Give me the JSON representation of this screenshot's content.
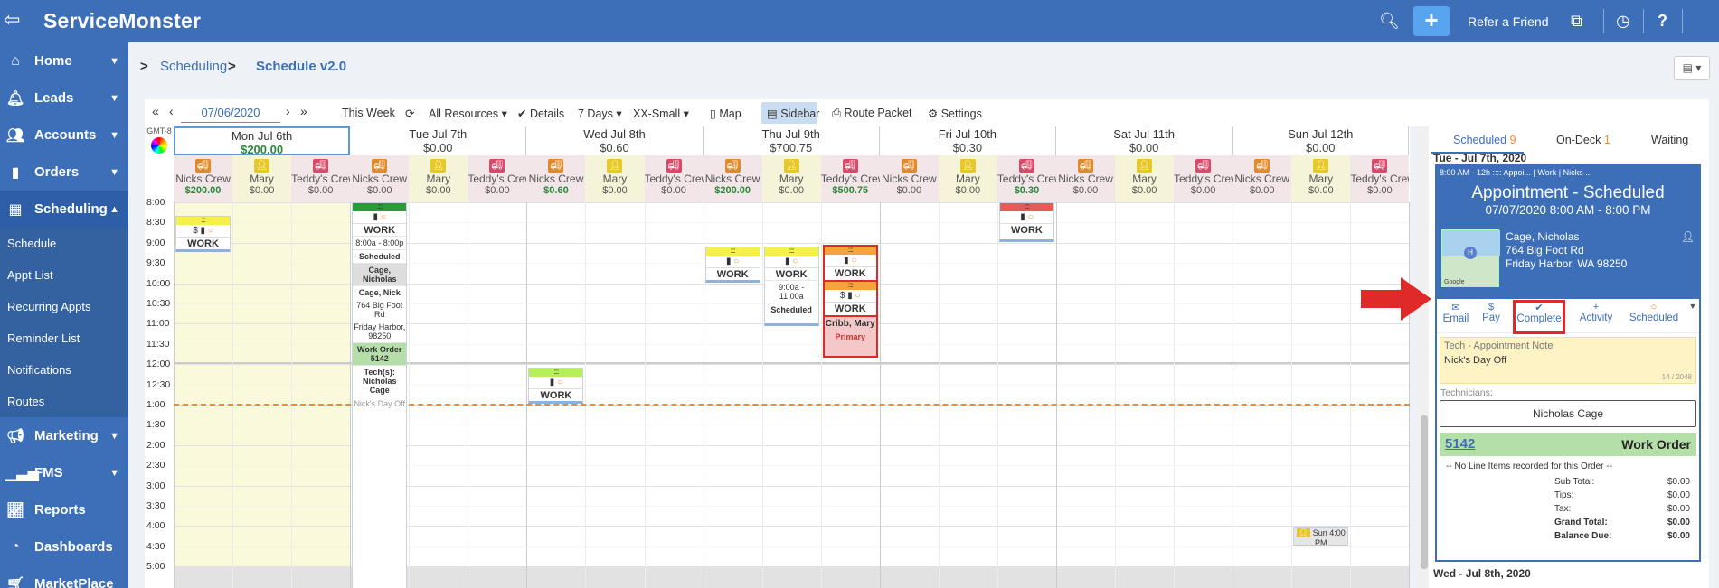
{
  "app": {
    "name": "ServiceMonster",
    "refer_label": "Refer a Friend"
  },
  "sidebar": {
    "items": [
      {
        "label": "Home",
        "icon": "home-icon"
      },
      {
        "label": "Leads",
        "icon": "bell-icon"
      },
      {
        "label": "Accounts",
        "icon": "users-icon"
      },
      {
        "label": "Orders",
        "icon": "file-icon"
      },
      {
        "label": "Scheduling",
        "icon": "calendar-icon"
      },
      {
        "label": "Marketing",
        "icon": "megaphone-icon"
      },
      {
        "label": "FMS",
        "icon": "signal-icon"
      },
      {
        "label": "Reports",
        "icon": "chart-icon"
      },
      {
        "label": "Dashboards",
        "icon": "pie-icon"
      },
      {
        "label": "MarketPlace",
        "icon": "cart-icon"
      }
    ],
    "sub_items": [
      "Schedule",
      "Appt List",
      "Recurring Appts",
      "Reminder List",
      "Notifications",
      "Routes"
    ]
  },
  "breadcrumb": {
    "parent": "Scheduling",
    "current": "Schedule v2.0"
  },
  "toolbar": {
    "date": "07/06/2020",
    "this_week": "This Week",
    "resources": "All Resources",
    "details": "Details",
    "days": "7 Days",
    "size": "XX-Small",
    "map": "Map",
    "sidebar": "Sidebar",
    "route_packet": "Route Packet",
    "settings": "Settings"
  },
  "calendar": {
    "gmt": "GMT-8",
    "days": [
      {
        "name": "Mon Jul 6th",
        "total": "$200.00",
        "resources": [
          "$200.00",
          "$0.00",
          "$0.00"
        ]
      },
      {
        "name": "Tue Jul 7th",
        "total": "$0.00",
        "resources": [
          "$0.00",
          "$0.00",
          "$0.00"
        ]
      },
      {
        "name": "Wed Jul 8th",
        "total": "$0.60",
        "resources": [
          "$0.60",
          "$0.00",
          "$0.00"
        ]
      },
      {
        "name": "Thu Jul 9th",
        "total": "$700.75",
        "resources": [
          "$200.00",
          "$0.00",
          "$500.75"
        ]
      },
      {
        "name": "Fri Jul 10th",
        "total": "$0.30",
        "resources": [
          "$0.00",
          "$0.00",
          "$0.30"
        ]
      },
      {
        "name": "Sat Jul 11th",
        "total": "$0.00",
        "resources": [
          "$0.00",
          "$0.00",
          "$0.00"
        ]
      },
      {
        "name": "Sun Jul 12th",
        "total": "$0.00",
        "resources": [
          "$0.00",
          "$0.00",
          "$0.00"
        ]
      }
    ],
    "resource_names": [
      "Nicks Crew",
      "Mary",
      "Teddy's Crew"
    ],
    "times": [
      "8:00",
      "8:30",
      "9:00",
      "9:30",
      "10:00",
      "10:30",
      "11:00",
      "11:30",
      "12:00",
      "12:30",
      "1:00",
      "1:30",
      "2:00",
      "2:30",
      "3:00",
      "3:30",
      "4:00",
      "4:30",
      "5:00"
    ],
    "appt_work": "WORK",
    "tue_appt": {
      "time": "8:00a - 8:00p",
      "status": "Scheduled",
      "name1": "Cage, Nicholas",
      "name2": "Cage, Nick",
      "street": "764 Big Foot Rd",
      "city": "Friday Harbor, 98250",
      "wo": "Work Order 5142",
      "techs": "Tech(s): Nicholas Cage",
      "note": "Nick's Day Off"
    },
    "thu_appt": {
      "time": "9:00a - 11:00a",
      "status": "Scheduled"
    },
    "thu_red": {
      "name": "Cribb, Mary",
      "tag": "Primary"
    },
    "sun_appt": "Sun 4:00 PM"
  },
  "right_panel": {
    "tabs": [
      {
        "label": "Scheduled",
        "count": "9"
      },
      {
        "label": "On-Deck",
        "count": "1"
      },
      {
        "label": "Waiting",
        "count": ""
      }
    ],
    "date_header": "Tue - Jul 7th, 2020",
    "card_top": "8:00 AM - 12h  ::::  Appoi... | Work | Nicks ...",
    "title": "Appointment - Scheduled",
    "datetime": "07/07/2020 8:00 AM - 8:00 PM",
    "customer": "Cage, Nicholas",
    "street": "764 Big Foot Rd",
    "city": "Friday Harbor, WA 98250",
    "map_attr": "Google",
    "actions": [
      "Email",
      "Pay",
      "Complete",
      "Activity",
      "Scheduled"
    ],
    "note_label": "Tech - Appointment Note",
    "note_value": "Nick's Day Off",
    "note_count": "14 / 2048",
    "technicians_label": "Technicians:",
    "technician": "Nicholas Cage",
    "wo_number": "5142",
    "wo_label": "Work Order",
    "no_items": "-- No Line Items recorded for this Order --",
    "totals": [
      {
        "label": "Sub Total:",
        "value": "$0.00",
        "bold": false
      },
      {
        "label": "Tips:",
        "value": "$0.00",
        "bold": false
      },
      {
        "label": "Tax:",
        "value": "$0.00",
        "bold": false
      },
      {
        "label": "Grand Total:",
        "value": "$0.00",
        "bold": true
      },
      {
        "label": "Balance Due:",
        "value": "$0.00",
        "bold": true
      }
    ],
    "next_date_header": "Wed - Jul 8th, 2020"
  },
  "colors": {
    "primary": "#3d6fb8",
    "accent_plus": "#59a4ee",
    "highlight_red": "#e02a2a",
    "now_line": "#f08a2e",
    "work_order_green": "#b5dfa8"
  }
}
